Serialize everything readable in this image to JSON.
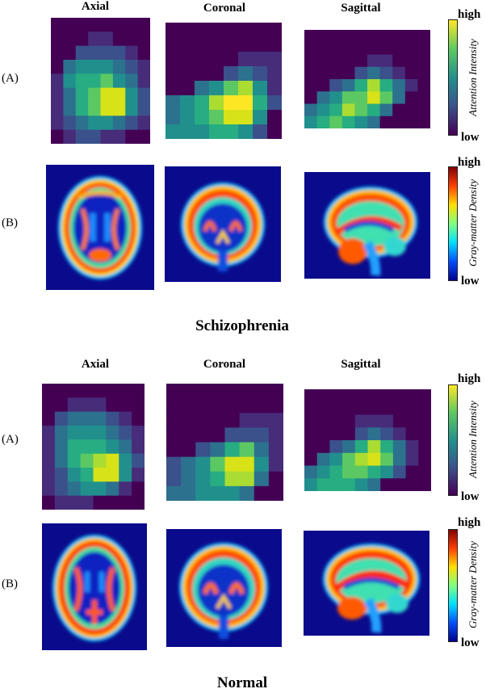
{
  "columns": [
    "Axial",
    "Coronal",
    "Sagittal"
  ],
  "row_labels": {
    "attention": "(A)",
    "density": "(B)"
  },
  "sections": {
    "schizophrenia": {
      "title": "Schizophrenia"
    },
    "normal": {
      "title": "Normal"
    }
  },
  "colorbars": {
    "attention": {
      "title": "Attention Intensity",
      "high": "high",
      "low": "low",
      "colormap": "viridis"
    },
    "density": {
      "title": "Gray-matter Density",
      "high": "high",
      "low": "low",
      "colormap": "jet"
    }
  },
  "colors": {
    "heatmap_background": "#440154",
    "mri_background": "#0a0a8c"
  },
  "attention_maps": {
    "schizophrenia": {
      "axial": [
        [
          0,
          0,
          0,
          0,
          0,
          0,
          0,
          0
        ],
        [
          0,
          0,
          0,
          1,
          1,
          0,
          0,
          0
        ],
        [
          0,
          0,
          2,
          2,
          2,
          2,
          1,
          0
        ],
        [
          0,
          3,
          4,
          4,
          4,
          3,
          2,
          1
        ],
        [
          1,
          4,
          5,
          5,
          6,
          4,
          3,
          1
        ],
        [
          1,
          3,
          5,
          6,
          8,
          8,
          4,
          2
        ],
        [
          1,
          3,
          5,
          6,
          8,
          8,
          4,
          2
        ],
        [
          1,
          2,
          3,
          4,
          4,
          3,
          2,
          1
        ],
        [
          0,
          1,
          2,
          2,
          1,
          1,
          0,
          0
        ]
      ],
      "coronal": [
        [
          0,
          0,
          0,
          0,
          0,
          0,
          0,
          0
        ],
        [
          0,
          0,
          0,
          0,
          0,
          0,
          0,
          0
        ],
        [
          0,
          0,
          0,
          0,
          0,
          1,
          1,
          1
        ],
        [
          0,
          0,
          0,
          0,
          2,
          3,
          2,
          1
        ],
        [
          0,
          0,
          3,
          4,
          6,
          7,
          4,
          1
        ],
        [
          3,
          4,
          5,
          7,
          9,
          9,
          5,
          2
        ],
        [
          3,
          4,
          5,
          6,
          8,
          8,
          4,
          0
        ],
        [
          4,
          4,
          4,
          5,
          5,
          4,
          2,
          0
        ]
      ],
      "sagittal": [
        [
          0,
          0,
          0,
          0,
          0,
          0,
          0,
          0,
          0,
          0
        ],
        [
          0,
          0,
          0,
          0,
          0,
          0,
          0,
          0,
          0,
          0
        ],
        [
          0,
          0,
          0,
          0,
          0,
          1,
          1,
          0,
          0,
          0
        ],
        [
          0,
          0,
          0,
          0,
          2,
          3,
          2,
          1,
          0,
          0
        ],
        [
          0,
          0,
          2,
          3,
          5,
          7,
          5,
          3,
          1,
          0
        ],
        [
          0,
          3,
          4,
          6,
          6,
          8,
          6,
          3,
          0,
          0
        ],
        [
          3,
          4,
          5,
          7,
          6,
          5,
          3,
          0,
          0,
          0
        ],
        [
          4,
          5,
          6,
          5,
          4,
          3,
          0,
          0,
          0,
          0
        ]
      ]
    },
    "normal": {
      "axial": [
        [
          0,
          0,
          0,
          0,
          0,
          0,
          0,
          0
        ],
        [
          0,
          0,
          1,
          1,
          1,
          0,
          0,
          0
        ],
        [
          0,
          2,
          3,
          3,
          3,
          2,
          1,
          0
        ],
        [
          1,
          3,
          4,
          4,
          4,
          3,
          2,
          1
        ],
        [
          1,
          3,
          5,
          5,
          5,
          4,
          3,
          1
        ],
        [
          1,
          3,
          5,
          6,
          7,
          8,
          4,
          2
        ],
        [
          1,
          2,
          4,
          5,
          8,
          8,
          4,
          1
        ],
        [
          1,
          2,
          3,
          4,
          4,
          3,
          1,
          0
        ],
        [
          0,
          1,
          1,
          1,
          0,
          0,
          0,
          0
        ]
      ],
      "coronal": [
        [
          0,
          0,
          0,
          0,
          0,
          0,
          0,
          0
        ],
        [
          0,
          0,
          0,
          0,
          0,
          0,
          0,
          0
        ],
        [
          0,
          0,
          0,
          0,
          0,
          1,
          1,
          1
        ],
        [
          0,
          0,
          0,
          0,
          2,
          2,
          2,
          1
        ],
        [
          0,
          0,
          2,
          3,
          5,
          6,
          3,
          1
        ],
        [
          2,
          3,
          4,
          6,
          8,
          8,
          4,
          1
        ],
        [
          2,
          3,
          4,
          5,
          7,
          7,
          3,
          0
        ],
        [
          3,
          3,
          4,
          4,
          4,
          3,
          0,
          0
        ]
      ],
      "sagittal": [
        [
          0,
          0,
          0,
          0,
          0,
          0,
          0,
          0,
          0,
          0
        ],
        [
          0,
          0,
          0,
          0,
          0,
          0,
          0,
          0,
          0,
          0
        ],
        [
          0,
          0,
          0,
          0,
          1,
          1,
          1,
          0,
          0,
          0
        ],
        [
          0,
          0,
          0,
          0,
          2,
          3,
          2,
          1,
          0,
          0
        ],
        [
          0,
          0,
          2,
          3,
          5,
          7,
          5,
          3,
          1,
          0
        ],
        [
          0,
          3,
          4,
          6,
          7,
          8,
          6,
          3,
          1,
          0
        ],
        [
          3,
          4,
          5,
          6,
          6,
          5,
          4,
          2,
          0,
          0
        ],
        [
          4,
          5,
          5,
          5,
          4,
          3,
          0,
          0,
          0,
          0
        ]
      ]
    }
  }
}
